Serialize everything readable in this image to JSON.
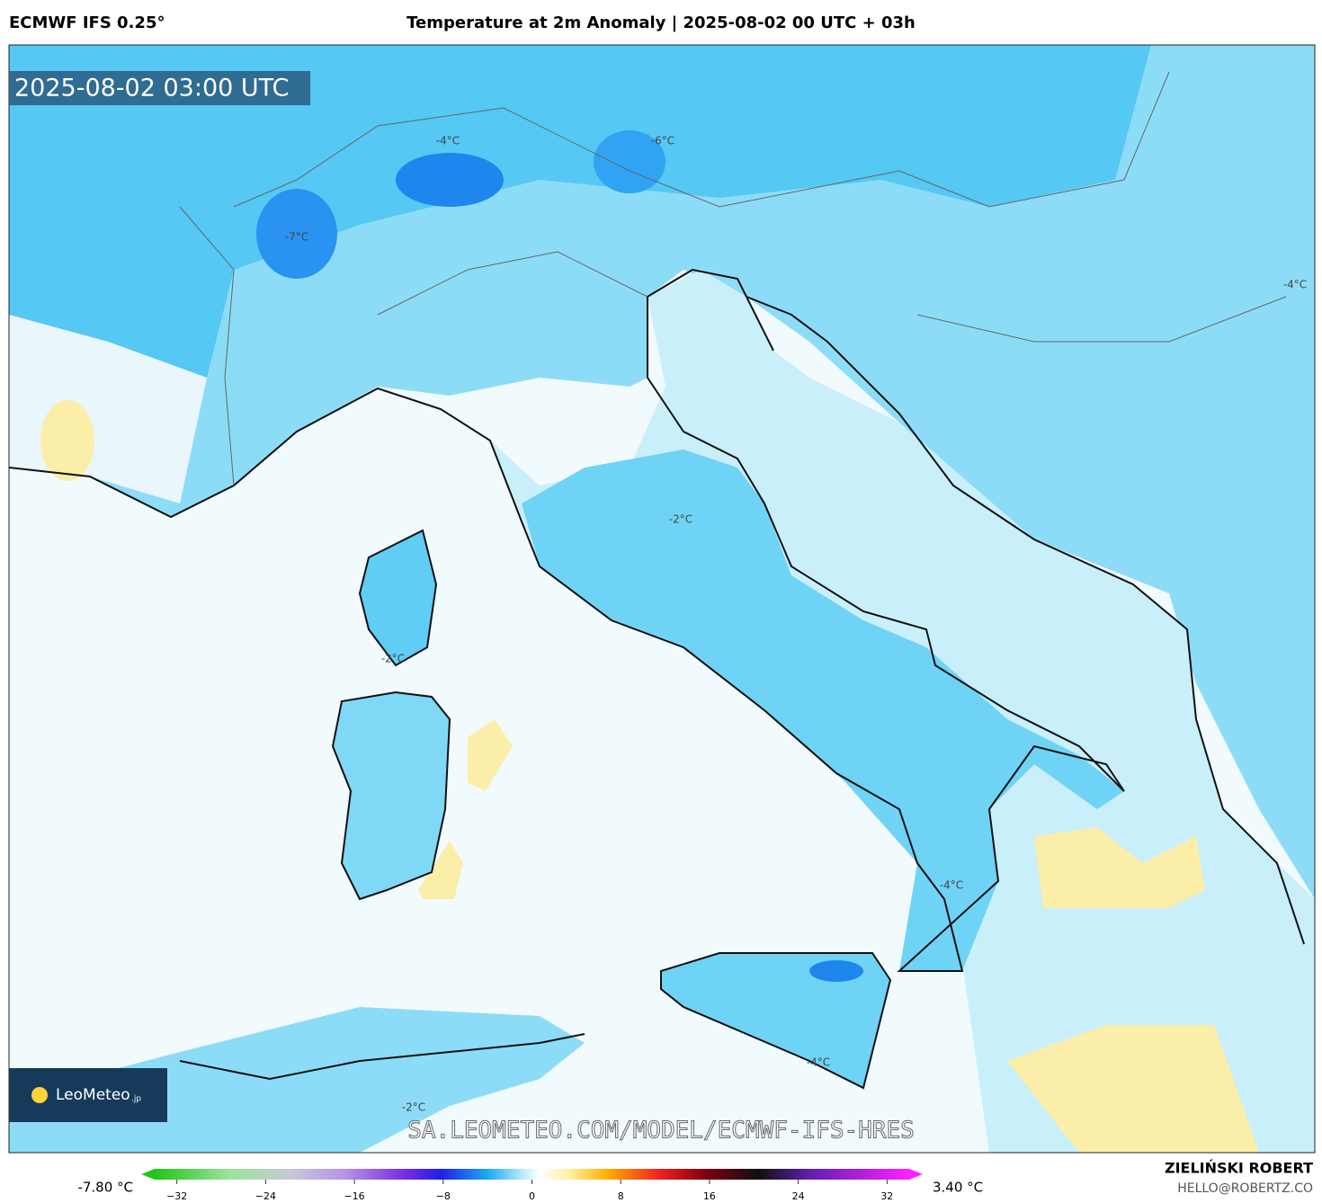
{
  "header": {
    "model": "ECMWF IFS 0.25°",
    "title": "Temperature at 2m Anomaly | 2025-08-02 00 UTC + 03h"
  },
  "map": {
    "timestamp": "2025-08-02 03:00 UTC",
    "watermark": "SA.LEOMETEO.COM/MODEL/ECMWF-IFS-HRES",
    "logo": {
      "name": "LeoMeteo",
      "suffix": ".jp"
    },
    "contour_labels": [
      "-4°C",
      "-6°C",
      "-7°C",
      "-4°C",
      "-2°C",
      "-2°C",
      "-4°C",
      "-4°C",
      "-2°C"
    ]
  },
  "colorbar": {
    "min_label": "-7.80 °C",
    "max_label": "3.40 °C",
    "range": [
      -34,
      34
    ],
    "ticks": [
      {
        "value": -32,
        "label": "−32"
      },
      {
        "value": -24,
        "label": "−24"
      },
      {
        "value": -16,
        "label": "−16"
      },
      {
        "value": -8,
        "label": "−8"
      },
      0,
      8,
      16,
      24,
      32
    ]
  },
  "footer": {
    "author": "ZIELIŃSKI ROBERT",
    "email": "HELLO@ROBERTZ.CO"
  }
}
